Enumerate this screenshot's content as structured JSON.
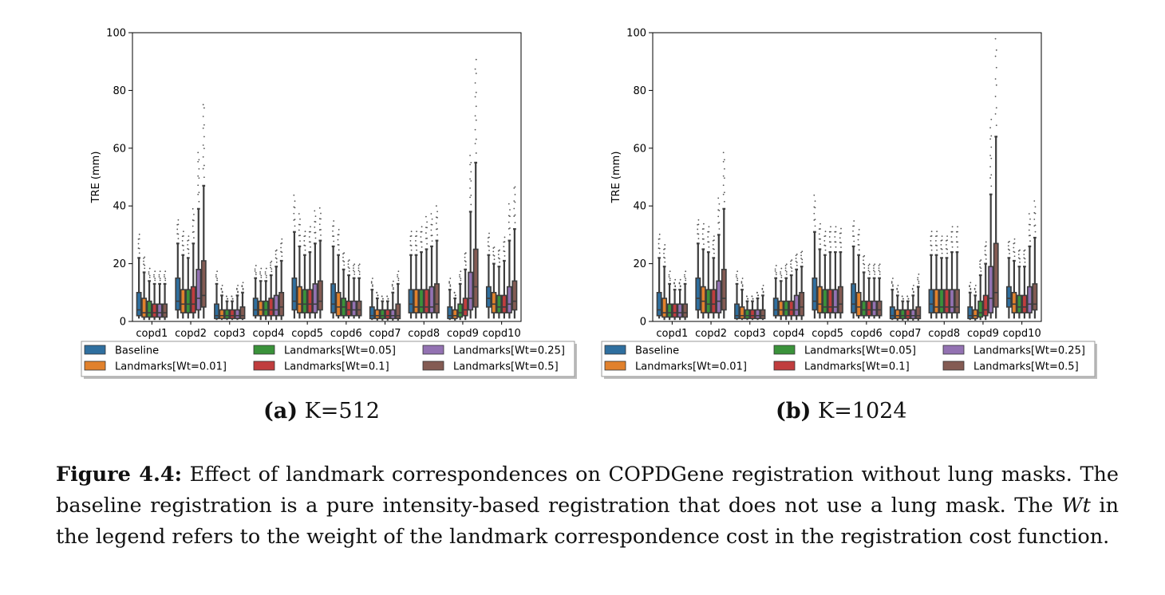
{
  "figure": {
    "label": "Figure 4.4:",
    "caption_part1": "Effect of landmark correspondences on COPDGene registration without lung masks. The baseline registration is a pure intensity-based registration that does not use a lung mask. The ",
    "caption_italic": "Wt",
    "caption_part2": " in the legend refers to the weight of the landmark correspondence cost in the registration cost function."
  },
  "colors": {
    "Baseline": "#2f6f9f",
    "Landmarks[Wt=0.01]": "#e1812c",
    "Landmarks[Wt=0.05]": "#3a923a",
    "Landmarks[Wt=0.1]": "#c03d3e",
    "Landmarks[Wt=0.25]": "#9372b2",
    "Landmarks[Wt=0.5]": "#845b53"
  },
  "chart_data": [
    {
      "type": "box",
      "subcaption_label": "(a)",
      "subcaption_text": "K=512",
      "ylabel": "TRE (mm)",
      "ylim": [
        0,
        100
      ],
      "yticks": [
        0,
        20,
        40,
        60,
        80,
        100
      ],
      "categories": [
        "copd1",
        "copd2",
        "copd3",
        "copd4",
        "copd5",
        "copd6",
        "copd7",
        "copd8",
        "copd9",
        "copd10"
      ],
      "legend": [
        "Baseline",
        "Landmarks[Wt=0.05]",
        "Landmarks[Wt=0.25]",
        "Landmarks[Wt=0.01]",
        "Landmarks[Wt=0.1]",
        "Landmarks[Wt=0.5]"
      ],
      "legend_placement": "below",
      "series": [
        {
          "name": "Baseline",
          "boxes": [
            [
              1,
              2,
              4,
              10,
              22
            ],
            [
              1,
              4,
              7,
              15,
              27
            ],
            [
              0.5,
              1,
              2,
              6,
              13
            ],
            [
              1,
              2,
              4,
              8,
              15
            ],
            [
              1,
              4,
              7,
              15,
              31
            ],
            [
              1,
              3,
              6,
              13,
              26
            ],
            [
              0.5,
              1,
              2,
              5,
              11
            ],
            [
              1,
              3,
              6,
              11,
              23
            ],
            [
              0.5,
              1,
              2,
              5,
              11
            ],
            [
              1,
              5,
              8,
              12,
              23
            ]
          ]
        },
        {
          "name": "Landmarks[Wt=0.01]",
          "boxes": [
            [
              0.5,
              1.5,
              3,
              8,
              17
            ],
            [
              1,
              3,
              6,
              11,
              23
            ],
            [
              0.5,
              1,
              2,
              4,
              9
            ],
            [
              0.5,
              2,
              4,
              7,
              14
            ],
            [
              1,
              3,
              6,
              12,
              26
            ],
            [
              1,
              2,
              5,
              10,
              23
            ],
            [
              0.3,
              1,
              2,
              4,
              8
            ],
            [
              1,
              3,
              5,
              11,
              23
            ],
            [
              0.3,
              1,
              2,
              4,
              8
            ],
            [
              1,
              3,
              6,
              10,
              20
            ]
          ]
        },
        {
          "name": "Landmarks[Wt=0.05]",
          "boxes": [
            [
              0.5,
              1.5,
              3,
              7,
              14
            ],
            [
              1,
              3,
              6,
              11,
              22
            ],
            [
              0.5,
              1,
              2,
              4,
              7
            ],
            [
              0.5,
              2,
              4,
              7,
              14
            ],
            [
              1,
              3,
              6,
              11,
              23
            ],
            [
              1,
              2,
              5,
              8,
              18
            ],
            [
              0.3,
              1,
              2,
              4,
              7
            ],
            [
              1,
              3,
              5,
              11,
              24
            ],
            [
              0.5,
              1.5,
              3,
              6,
              13
            ],
            [
              1,
              3,
              5,
              9,
              19
            ]
          ]
        },
        {
          "name": "Landmarks[Wt=0.1]",
          "boxes": [
            [
              0.5,
              1.5,
              3,
              6,
              13
            ],
            [
              1,
              3,
              6,
              12,
              27
            ],
            [
              0.5,
              1,
              2,
              4,
              7
            ],
            [
              0.5,
              2,
              4,
              8,
              16
            ],
            [
              1,
              3,
              6,
              11,
              24
            ],
            [
              1,
              2,
              4,
              7,
              16
            ],
            [
              0.3,
              1,
              2,
              4,
              7
            ],
            [
              1,
              3,
              5,
              11,
              25
            ],
            [
              0.5,
              2,
              4,
              8,
              18
            ],
            [
              1,
              3,
              5,
              9,
              21
            ]
          ]
        },
        {
          "name": "Landmarks[Wt=0.25]",
          "boxes": [
            [
              0.5,
              1.5,
              3,
              6,
              13
            ],
            [
              1,
              4,
              8,
              18,
              39
            ],
            [
              0.5,
              1,
              2,
              4,
              9
            ],
            [
              0.5,
              2,
              4,
              9,
              19
            ],
            [
              1,
              3,
              6,
              13,
              27
            ],
            [
              1,
              2,
              4,
              7,
              15
            ],
            [
              0.3,
              1,
              2,
              4,
              10
            ],
            [
              1,
              3,
              5,
              12,
              26
            ],
            [
              1,
              4,
              8,
              17,
              38
            ],
            [
              1,
              3,
              6,
              12,
              28
            ]
          ]
        },
        {
          "name": "Landmarks[Wt=0.5]",
          "boxes": [
            [
              0.5,
              1.5,
              3,
              6,
              13
            ],
            [
              1,
              5,
              9,
              21,
              47
            ],
            [
              0.5,
              1,
              2,
              5,
              10
            ],
            [
              0.5,
              2,
              5,
              10,
              21
            ],
            [
              1,
              4,
              7,
              14,
              28
            ],
            [
              1,
              2,
              4,
              7,
              15
            ],
            [
              0.3,
              1,
              2,
              6,
              13
            ],
            [
              1,
              3,
              6,
              13,
              28
            ],
            [
              1,
              5,
              12,
              25,
              55
            ],
            [
              1,
              4,
              7,
              14,
              32
            ]
          ]
        }
      ]
    },
    {
      "type": "box",
      "subcaption_label": "(b)",
      "subcaption_text": "K=1024",
      "ylabel": "TRE (mm)",
      "ylim": [
        0,
        100
      ],
      "yticks": [
        0,
        20,
        40,
        60,
        80,
        100
      ],
      "categories": [
        "copd1",
        "copd2",
        "copd3",
        "copd4",
        "copd5",
        "copd6",
        "copd7",
        "copd8",
        "copd9",
        "copd10"
      ],
      "legend": [
        "Baseline",
        "Landmarks[Wt=0.05]",
        "Landmarks[Wt=0.25]",
        "Landmarks[Wt=0.01]",
        "Landmarks[Wt=0.1]",
        "Landmarks[Wt=0.5]"
      ],
      "legend_placement": "below",
      "series": [
        {
          "name": "Baseline",
          "boxes": [
            [
              1,
              2,
              4,
              10,
              22
            ],
            [
              1,
              4,
              8,
              15,
              27
            ],
            [
              0.5,
              1,
              2,
              6,
              13
            ],
            [
              1,
              2,
              4,
              8,
              15
            ],
            [
              1,
              4,
              7,
              15,
              31
            ],
            [
              1,
              3,
              6,
              13,
              26
            ],
            [
              0.5,
              1,
              2,
              5,
              11
            ],
            [
              1,
              3,
              6,
              11,
              23
            ],
            [
              0.5,
              1,
              2,
              5,
              10
            ],
            [
              1,
              5,
              8,
              12,
              22
            ]
          ]
        },
        {
          "name": "Landmarks[Wt=0.01]",
          "boxes": [
            [
              0.5,
              1.5,
              3,
              8,
              19
            ],
            [
              1,
              3,
              7,
              12,
              25
            ],
            [
              0.5,
              1,
              2,
              5,
              11
            ],
            [
              0.5,
              2,
              4,
              7,
              14
            ],
            [
              1,
              3,
              6,
              12,
              25
            ],
            [
              1,
              2,
              5,
              10,
              23
            ],
            [
              0.3,
              1,
              2,
              4,
              9
            ],
            [
              1,
              3,
              5,
              11,
              23
            ],
            [
              0.3,
              1,
              2,
              4,
              9
            ],
            [
              1,
              3,
              6,
              10,
              21
            ]
          ]
        },
        {
          "name": "Landmarks[Wt=0.05]",
          "boxes": [
            [
              0.5,
              1.5,
              3,
              6,
              13
            ],
            [
              1,
              3,
              6,
              11,
              24
            ],
            [
              0.5,
              1,
              2,
              4,
              7
            ],
            [
              0.5,
              2,
              4,
              7,
              15
            ],
            [
              1,
              3,
              5,
              11,
              23
            ],
            [
              1,
              2,
              4,
              7,
              17
            ],
            [
              0.3,
              1,
              2,
              4,
              7
            ],
            [
              1,
              3,
              5,
              11,
              22
            ],
            [
              0.5,
              1.5,
              3,
              7,
              16
            ],
            [
              1,
              3,
              5,
              9,
              19
            ]
          ]
        },
        {
          "name": "Landmarks[Wt=0.1]",
          "boxes": [
            [
              0.5,
              1.5,
              3,
              6,
              11
            ],
            [
              1,
              3,
              6,
              11,
              22
            ],
            [
              0.5,
              1,
              2,
              4,
              7
            ],
            [
              0.5,
              2,
              4,
              7,
              16
            ],
            [
              1,
              3,
              5,
              11,
              24
            ],
            [
              1,
              2,
              4,
              7,
              15
            ],
            [
              0.3,
              1,
              2,
              4,
              7
            ],
            [
              1,
              3,
              5,
              11,
              22
            ],
            [
              0.5,
              2,
              4,
              9,
              20
            ],
            [
              1,
              3,
              5,
              9,
              19
            ]
          ]
        },
        {
          "name": "Landmarks[Wt=0.25]",
          "boxes": [
            [
              0.5,
              1.5,
              3,
              6,
              11
            ],
            [
              1,
              3,
              7,
              14,
              30
            ],
            [
              0.5,
              1,
              2,
              4,
              8
            ],
            [
              0.5,
              2,
              4,
              9,
              18
            ],
            [
              1,
              3,
              5,
              11,
              24
            ],
            [
              1,
              2,
              4,
              7,
              15
            ],
            [
              0.3,
              1,
              2,
              4,
              9
            ],
            [
              1,
              3,
              5,
              11,
              24
            ],
            [
              1,
              3,
              8,
              19,
              44
            ],
            [
              1,
              3,
              6,
              12,
              26
            ]
          ]
        },
        {
          "name": "Landmarks[Wt=0.5]",
          "boxes": [
            [
              0.5,
              1.5,
              3,
              6,
              13
            ],
            [
              1,
              4,
              8,
              18,
              39
            ],
            [
              0.5,
              1,
              2,
              4,
              9
            ],
            [
              0.5,
              2,
              5,
              10,
              19
            ],
            [
              1,
              3,
              6,
              12,
              24
            ],
            [
              1,
              2,
              4,
              7,
              15
            ],
            [
              0.3,
              1,
              2,
              5,
              12
            ],
            [
              1,
              3,
              5,
              11,
              24
            ],
            [
              1,
              5,
              10,
              27,
              64
            ],
            [
              1,
              4,
              6,
              13,
              29
            ]
          ]
        }
      ]
    }
  ]
}
